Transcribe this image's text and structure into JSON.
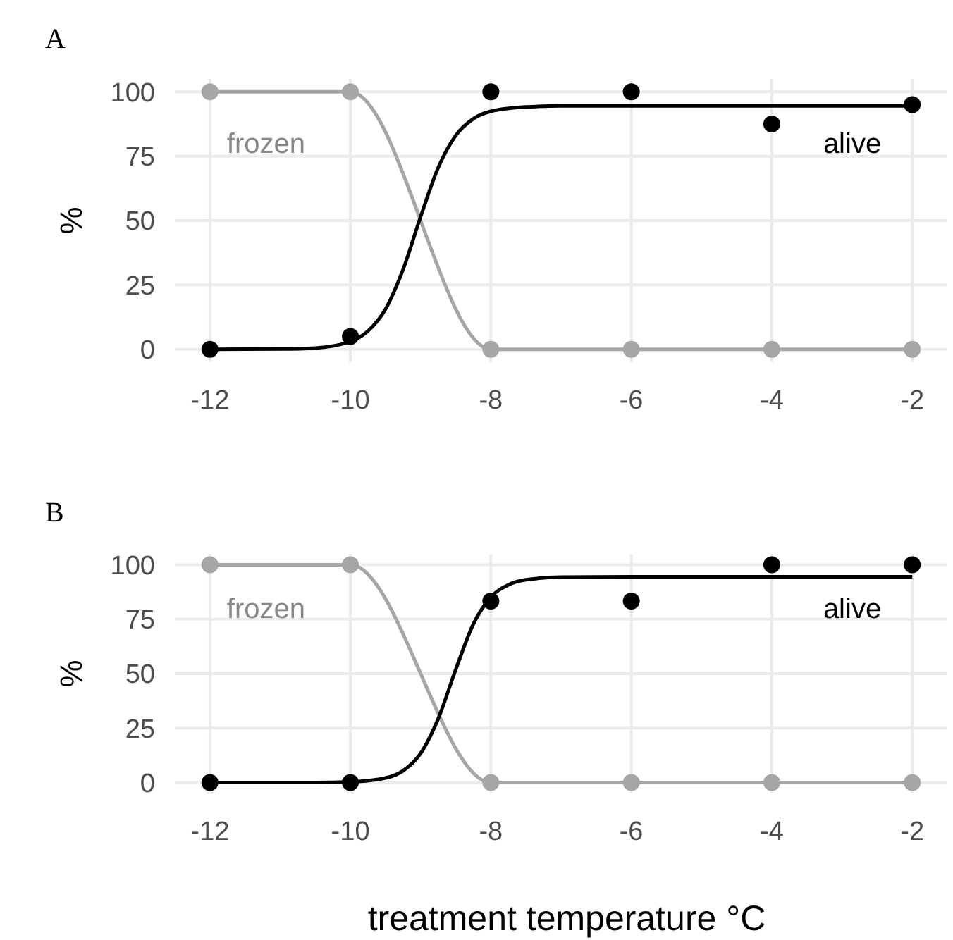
{
  "chart_data": [
    {
      "type": "line",
      "title": "A",
      "ylabel": "%",
      "xlim": [
        -12.5,
        -1.5
      ],
      "ylim": [
        -5,
        105
      ],
      "xticks": [
        -12,
        -10,
        -8,
        -6,
        -4,
        -2
      ],
      "yticks": [
        0,
        25,
        50,
        75,
        100
      ],
      "grid": true,
      "series": [
        {
          "name": "frozen",
          "color": "#a6a6a6",
          "marker": "circle",
          "x": [
            -12,
            -10,
            -8,
            -6,
            -4,
            -2
          ],
          "values": [
            100,
            100,
            0,
            0,
            0,
            0
          ]
        },
        {
          "name": "alive",
          "color": "#000000",
          "marker": "none",
          "x": [
            -12,
            -11,
            -10.5,
            -10,
            -9.75,
            -9.5,
            -9.25,
            -9,
            -8.75,
            -8.5,
            -8.25,
            -8,
            -7.5,
            -7,
            -2
          ],
          "values": [
            0,
            0.1,
            0.5,
            3.0,
            7.1,
            15.6,
            31.0,
            51.5,
            70.5,
            83.0,
            89.5,
            92.4,
            94.1,
            94.5,
            94.5
          ]
        },
        {
          "type": "scatter",
          "color": "#000000",
          "marker": "circle",
          "x": [
            -12,
            -10,
            -8,
            -6,
            -4,
            -2
          ],
          "values": [
            0,
            5,
            100,
            100,
            87.5,
            95
          ]
        }
      ]
    },
    {
      "type": "line",
      "title": "B",
      "ylabel": "%",
      "xlabel": "treatment temperature °C",
      "xlim": [
        -12.5,
        -1.5
      ],
      "ylim": [
        -5,
        105
      ],
      "xticks": [
        -12,
        -10,
        -8,
        -6,
        -4,
        -2
      ],
      "yticks": [
        0,
        25,
        50,
        75,
        100
      ],
      "grid": true,
      "series": [
        {
          "name": "frozen",
          "color": "#a6a6a6",
          "marker": "circle",
          "x": [
            -12,
            -10,
            -8,
            -6,
            -4,
            -2
          ],
          "values": [
            100,
            100,
            0,
            0,
            0,
            0
          ]
        },
        {
          "name": "alive",
          "color": "#000000",
          "marker": "none",
          "x": [
            -12,
            -10.5,
            -10,
            -9.5,
            -9.25,
            -9,
            -8.75,
            -8.5,
            -8.25,
            -8,
            -7.75,
            -7.5,
            -7,
            -6,
            -2
          ],
          "values": [
            0,
            0,
            0.3,
            2.1,
            5.4,
            13.4,
            29.3,
            51.9,
            72.7,
            85.1,
            90.8,
            93.1,
            94.3,
            94.5,
            94.5
          ]
        },
        {
          "type": "scatter",
          "color": "#000000",
          "marker": "circle",
          "x": [
            -12,
            -10,
            -8,
            -6,
            -4,
            -2
          ],
          "values": [
            0,
            0,
            83.3,
            83.3,
            100,
            100
          ]
        }
      ]
    }
  ]
}
